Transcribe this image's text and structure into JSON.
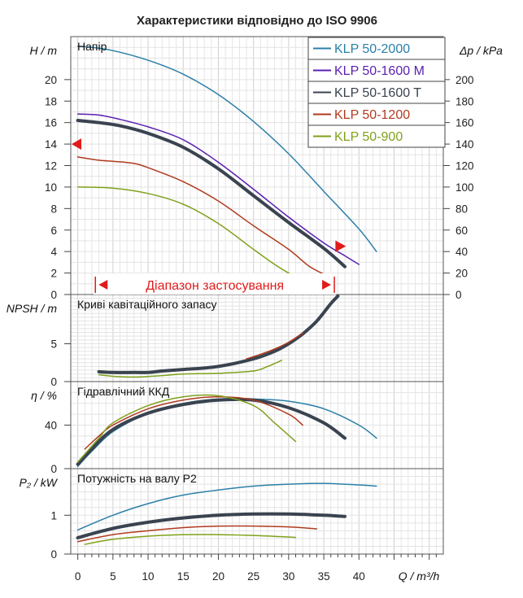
{
  "chart_data": {
    "type": "line",
    "title": "Характеристики відповідно до ISO 9906",
    "x_label": "Q / m³/h",
    "x_ticks": [
      "0",
      "5",
      "10",
      "15",
      "20",
      "25",
      "30",
      "35",
      "40"
    ],
    "xlim": [
      -1,
      52
    ],
    "series_styles": [
      {
        "name": "KLP 50-2000",
        "color": "#2b7fa8",
        "width": 1.5
      },
      {
        "name": "KLP 50-1600 M",
        "color": "#5a1fb0",
        "width": 1.5
      },
      {
        "name": "KLP 50-1600 T",
        "color": "#3a4350",
        "width": 4
      },
      {
        "name": "KLP 50-1200",
        "color": "#b03a1e",
        "width": 1.5
      },
      {
        "name": "KLP 50-900",
        "color": "#7fa11a",
        "width": 1.5
      }
    ],
    "panels": [
      {
        "id": "head",
        "label": "Напір",
        "y_label": "H / m",
        "right_label": "Δp / kPa",
        "ylim": [
          0,
          24
        ],
        "y_ticks": [
          "0",
          "2",
          "4",
          "6",
          "8",
          "10",
          "12",
          "14",
          "16",
          "18",
          "20"
        ],
        "right_ticks": [
          "0",
          "20",
          "40",
          "60",
          "80",
          "100",
          "120",
          "140",
          "160",
          "180",
          "200"
        ],
        "operating_range_label": "Діапазон застосування",
        "operating_range_x": [
          2.5,
          36.5
        ],
        "marker_head": 14,
        "marker_point": {
          "x": 37,
          "y": 4.5
        },
        "series": [
          {
            "name": "KLP 50-2000",
            "x": [
              0,
              2,
              5,
              10,
              15,
              20,
              25,
              30,
              35,
              40,
              42.5
            ],
            "y": [
              23.1,
              23.0,
              22.7,
              21.8,
              20.5,
              18.6,
              16.1,
              13.1,
              9.6,
              6.1,
              4.0
            ]
          },
          {
            "name": "KLP 50-1600 M",
            "x": [
              0,
              3,
              6,
              10,
              15,
              20,
              25,
              30,
              35,
              38,
              40
            ],
            "y": [
              16.8,
              16.7,
              16.3,
              15.6,
              14.4,
              12.3,
              9.8,
              7.2,
              4.8,
              3.6,
              2.8
            ]
          },
          {
            "name": "KLP 50-1600 T",
            "x": [
              0,
              3,
              6,
              10,
              15,
              20,
              25,
              30,
              35,
              38
            ],
            "y": [
              16.2,
              16.0,
              15.7,
              15.0,
              13.7,
              11.7,
              9.2,
              6.7,
              4.3,
              2.6
            ]
          },
          {
            "name": "KLP 50-1200",
            "x": [
              0,
              3,
              5,
              8,
              10,
              15,
              20,
              25,
              30,
              33,
              36
            ],
            "y": [
              12.8,
              12.5,
              12.4,
              12.2,
              11.8,
              10.5,
              8.7,
              6.4,
              4.2,
              2.6,
              1.6
            ]
          },
          {
            "name": "KLP 50-900",
            "x": [
              0,
              5,
              10,
              15,
              20,
              25,
              28,
              30.5
            ],
            "y": [
              10.0,
              9.9,
              9.4,
              8.4,
              6.6,
              4.2,
              2.8,
              1.8
            ]
          }
        ]
      },
      {
        "id": "npsh",
        "label": "Криві кавітаційного запасу",
        "y_label": "NPSH / m",
        "ylim": [
          0,
          11.5
        ],
        "y_ticks": [
          "0",
          "5"
        ],
        "series": [
          {
            "name": "KLP 50-1600 T",
            "x": [
              3,
              5,
              8,
              10,
              12,
              15,
              20,
              25,
              28,
              30,
              32,
              34,
              36,
              37
            ],
            "y": [
              1.3,
              1.2,
              1.2,
              1.2,
              1.4,
              1.6,
              2.0,
              3.0,
              4.0,
              5.0,
              6.3,
              8.0,
              10.3,
              11.3
            ]
          },
          {
            "name": "KLP 50-1200",
            "x": [
              24,
              26,
              28,
              30,
              32
            ],
            "y": [
              3.0,
              3.6,
              4.3,
              5.2,
              6.4
            ]
          },
          {
            "name": "KLP 50-900",
            "x": [
              3,
              5,
              8,
              12,
              15,
              20,
              25,
              27,
              29
            ],
            "y": [
              0.9,
              0.7,
              0.6,
              0.8,
              1.0,
              1.1,
              1.4,
              2.0,
              2.8
            ]
          }
        ]
      },
      {
        "id": "eff",
        "label": "Гідравлічний ККД",
        "y_label": "η / %",
        "ylim": [
          0,
          80
        ],
        "y_ticks": [
          "0",
          "40"
        ],
        "series": [
          {
            "name": "KLP 50-2000",
            "x": [
              0,
              2,
              5,
              10,
              15,
              20,
              25,
              30,
              35,
              40,
              42.5
            ],
            "y": [
              2,
              16,
              34,
              51,
              60,
              64,
              64,
              62,
              55,
              40,
              28
            ]
          },
          {
            "name": "KLP 50-1600 T",
            "x": [
              0,
              2,
              5,
              10,
              15,
              20,
              25,
              30,
              35,
              38
            ],
            "y": [
              4,
              18,
              36,
              51,
              59,
              63,
              63,
              56,
              42,
              28
            ]
          },
          {
            "name": "KLP 50-1200",
            "x": [
              1,
              3,
              5,
              10,
              15,
              20,
              25,
              30,
              32
            ],
            "y": [
              18,
              30,
              40,
              55,
              63,
              66,
              63,
              50,
              40
            ]
          },
          {
            "name": "KLP 50-900",
            "x": [
              0,
              3,
              5,
              10,
              15,
              20,
              25,
              28,
              31
            ],
            "y": [
              6,
              28,
              42,
              58,
              66,
              67,
              58,
              42,
              25
            ]
          }
        ]
      },
      {
        "id": "power",
        "label": "Потужність на валу P2",
        "y_label": "P₂ / kW",
        "ylim": [
          0,
          2.2
        ],
        "y_ticks": [
          "0",
          "1"
        ],
        "series": [
          {
            "name": "KLP 50-2000",
            "x": [
              0,
              5,
              10,
              15,
              20,
              25,
              30,
              35,
              40,
              42.5
            ],
            "y": [
              0.62,
              1.0,
              1.3,
              1.52,
              1.65,
              1.75,
              1.8,
              1.82,
              1.78,
              1.75
            ]
          },
          {
            "name": "KLP 50-1600 T",
            "x": [
              0,
              5,
              10,
              15,
              20,
              25,
              30,
              35,
              38
            ],
            "y": [
              0.42,
              0.66,
              0.82,
              0.93,
              1.0,
              1.03,
              1.03,
              1.0,
              0.97
            ]
          },
          {
            "name": "KLP 50-1200",
            "x": [
              0,
              5,
              10,
              15,
              20,
              25,
              30,
              34
            ],
            "y": [
              0.32,
              0.5,
              0.6,
              0.68,
              0.72,
              0.72,
              0.7,
              0.65
            ]
          },
          {
            "name": "KLP 50-900",
            "x": [
              1,
              5,
              10,
              15,
              20,
              25,
              31
            ],
            "y": [
              0.25,
              0.38,
              0.46,
              0.5,
              0.5,
              0.48,
              0.43
            ]
          }
        ]
      }
    ]
  }
}
